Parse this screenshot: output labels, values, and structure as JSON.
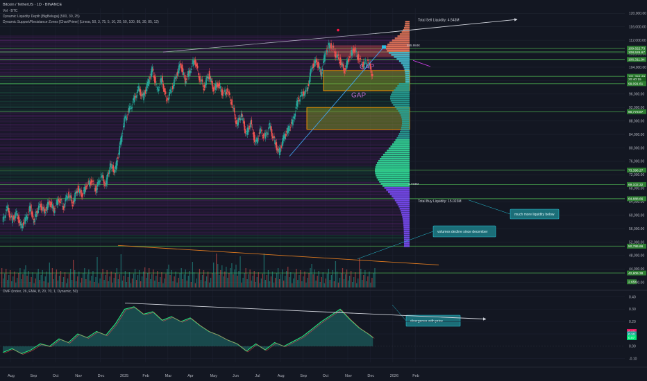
{
  "header": {
    "title": "Bitcoin / TetherUS · 1D · BINANCE",
    "vol": "Vol · BTC",
    "indicator1": "Dynamic Liquidity Depth [BigBeluga] (500, 30, 25)",
    "indicator2": "Dynamic Support/Resistance Zones [ChartPrime] (Linear, 50, 3, 75, 5, 10, 20, 50, 100, 88, 30, 85, 12)",
    "dmf": "DMF (Index, 26, EMA, 8, 20, 70, 1, Dynamic, 50)"
  },
  "colors": {
    "background": "#131722",
    "up": "#26a69a",
    "down": "#ef5350",
    "zone_green": "#2ecc71",
    "zone_purple": "#8e24aa",
    "gap_orange": "#ff9800",
    "teal_box": "#1b6e78",
    "trend_blue": "#42a5f5",
    "price_tag": "#2e7d32"
  },
  "annotations": {
    "sell_liquidity": "Total Sell Liquidity: 4.543M",
    "buy_liquidity": "Total Buy Liquidity: 15.023M",
    "more_liquidity": "much more liquidity below",
    "volumes_decline": "volumes decline since december",
    "divergence": "divergence with price",
    "gap1": "GAP",
    "gap2": "GAP",
    "profile_top_label": "995.984K",
    "profile_mid_label": "1.734M"
  },
  "chart_data": [
    {
      "type": "line",
      "name": "BTCUSDT price (candlestick)",
      "x_ticks": [
        "Aug",
        "Sep",
        "Oct",
        "Nov",
        "Dec",
        "2025",
        "Feb",
        "Mar",
        "Apr",
        "May",
        "Jun",
        "Jul",
        "Aug",
        "Sep",
        "Oct",
        "Nov",
        "Dec",
        "2026",
        "Feb"
      ],
      "y_ticks": [
        "120,000.00",
        "116,000.00",
        "112,000.00",
        "108,000.00",
        "104,000.00",
        "100,000.00",
        "96,000.00",
        "92,000.00",
        "88,000.00",
        "84,000.00",
        "80,000.00",
        "76,000.00",
        "72,000.00",
        "68,000.00",
        "64,000.00",
        "60,000.00",
        "56,000.00",
        "52,000.00",
        "48,000.00",
        "44,000.00",
        "40,000.00"
      ],
      "ylim": [
        38500,
        121500
      ],
      "axis_tags": [
        {
          "label": "109,622.73",
          "value": 109622.73
        },
        {
          "label": "108,526.67",
          "value": 108526.67
        },
        {
          "label": "106,311.94",
          "value": 106311.94
        },
        {
          "label": "101,284.49",
          "value": 101284.49
        },
        {
          "label": "20:40:15",
          "value": 100400
        },
        {
          "label": "99,091.61",
          "value": 99091.61
        },
        {
          "label": "90,773.87",
          "value": 90773.87
        },
        {
          "label": "73,396.27",
          "value": 73396.27
        },
        {
          "label": "69,102.32",
          "value": 69102.32
        },
        {
          "label": "64,888.66",
          "value": 64888.66
        },
        {
          "label": "50,786.66",
          "value": 50786.66
        },
        {
          "label": "42,806.38",
          "value": 42806.38
        }
      ],
      "volume_tag": "2.65K",
      "series": [
        {
          "values": [
            [
              0,
              58000
            ],
            [
              0.5,
              62000
            ],
            [
              1,
              58500
            ],
            [
              1.5,
              60500
            ],
            [
              2,
              56500
            ],
            [
              2.5,
              59000
            ],
            [
              3,
              62500
            ],
            [
              3.3,
              58000
            ],
            [
              3.6,
              60500
            ],
            [
              4,
              63000
            ],
            [
              4.5,
              61000
            ],
            [
              5,
              64000
            ],
            [
              5.5,
              61500
            ],
            [
              6,
              65000
            ],
            [
              6.5,
              62500
            ],
            [
              7,
              66500
            ],
            [
              7.5,
              63500
            ],
            [
              8,
              68000
            ],
            [
              8.5,
              66000
            ],
            [
              9,
              69000
            ],
            [
              9.5,
              70000
            ],
            [
              10,
              67500
            ],
            [
              10.5,
              72000
            ],
            [
              11,
              69000
            ],
            [
              11.5,
              75000
            ],
            [
              12,
              73000
            ],
            [
              12.5,
              80000
            ],
            [
              13,
              88000
            ],
            [
              13.5,
              91000
            ],
            [
              14,
              94000
            ],
            [
              14.5,
              97500
            ],
            [
              15,
              95000
            ],
            [
              15.5,
              99000
            ],
            [
              16,
              103500
            ],
            [
              16.5,
              97000
            ],
            [
              17,
              100500
            ],
            [
              17.5,
              94000
            ],
            [
              18,
              97000
            ],
            [
              18.5,
              101000
            ],
            [
              19,
              105000
            ],
            [
              19.5,
              100000
            ],
            [
              20,
              103000
            ],
            [
              20.5,
              106500
            ],
            [
              21,
              101000
            ],
            [
              21.5,
              98000
            ],
            [
              22,
              102000
            ],
            [
              22.5,
              97500
            ],
            [
              23,
              99000
            ],
            [
              23.5,
              96000
            ],
            [
              24,
              97000
            ],
            [
              24.5,
              93000
            ],
            [
              25,
              87000
            ],
            [
              25.5,
              90000
            ],
            [
              26,
              84000
            ],
            [
              26.5,
              87500
            ],
            [
              27,
              81000
            ],
            [
              27.5,
              85000
            ],
            [
              28,
              83000
            ],
            [
              28.5,
              86500
            ],
            [
              29,
              82000
            ],
            [
              29.5,
              78500
            ],
            [
              30,
              83000
            ],
            [
              30.5,
              85500
            ],
            [
              31,
              88000
            ],
            [
              31.5,
              94000
            ],
            [
              32,
              96000
            ],
            [
              32.5,
              97000
            ],
            [
              33,
              104000
            ],
            [
              33.5,
              106000
            ],
            [
              34,
              102000
            ],
            [
              34.5,
              109000
            ],
            [
              35,
              111000
            ],
            [
              35.5,
              108000
            ],
            [
              36,
              106000
            ],
            [
              36.5,
              103000
            ],
            [
              37,
              107000
            ],
            [
              37.5,
              109500
            ],
            [
              38,
              106500
            ],
            [
              38.5,
              104500
            ],
            [
              39,
              106000
            ],
            [
              39.5,
              101300
            ]
          ]
        }
      ]
    },
    {
      "type": "line",
      "name": "DMF",
      "y_ticks": [
        "0.40",
        "0.30",
        "0.20",
        "0.10",
        "0.00",
        "-0.10"
      ],
      "ylim": [
        -0.13,
        0.42
      ],
      "tags": [
        {
          "label": "0.12",
          "value": 0.12
        },
        {
          "label": "0.10",
          "value": 0.1
        },
        {
          "label": "0.07",
          "value": 0.07
        }
      ],
      "series": [
        {
          "values": [
            [
              0,
              -0.05
            ],
            [
              1,
              -0.02
            ],
            [
              2,
              -0.06
            ],
            [
              3,
              -0.03
            ],
            [
              4,
              0.02
            ],
            [
              5,
              0.0
            ],
            [
              6,
              0.06
            ],
            [
              7,
              0.03
            ],
            [
              8,
              0.1
            ],
            [
              9,
              0.07
            ],
            [
              10,
              0.12
            ],
            [
              11,
              0.09
            ],
            [
              12,
              0.18
            ],
            [
              13,
              0.3
            ],
            [
              14,
              0.32
            ],
            [
              15,
              0.26
            ],
            [
              16,
              0.28
            ],
            [
              17,
              0.21
            ],
            [
              18,
              0.24
            ],
            [
              19,
              0.2
            ],
            [
              20,
              0.23
            ],
            [
              21,
              0.17
            ],
            [
              22,
              0.12
            ],
            [
              23,
              0.09
            ],
            [
              24,
              0.05
            ],
            [
              25,
              0.02
            ],
            [
              26,
              -0.04
            ],
            [
              27,
              0.02
            ],
            [
              28,
              -0.03
            ],
            [
              29,
              0.03
            ],
            [
              30,
              0.0
            ],
            [
              31,
              0.04
            ],
            [
              32,
              0.08
            ],
            [
              33,
              0.14
            ],
            [
              34,
              0.2
            ],
            [
              35,
              0.25
            ],
            [
              36,
              0.3
            ],
            [
              37,
              0.22
            ],
            [
              38,
              0.15
            ],
            [
              39,
              0.1
            ],
            [
              39.5,
              0.07
            ]
          ]
        }
      ]
    }
  ]
}
